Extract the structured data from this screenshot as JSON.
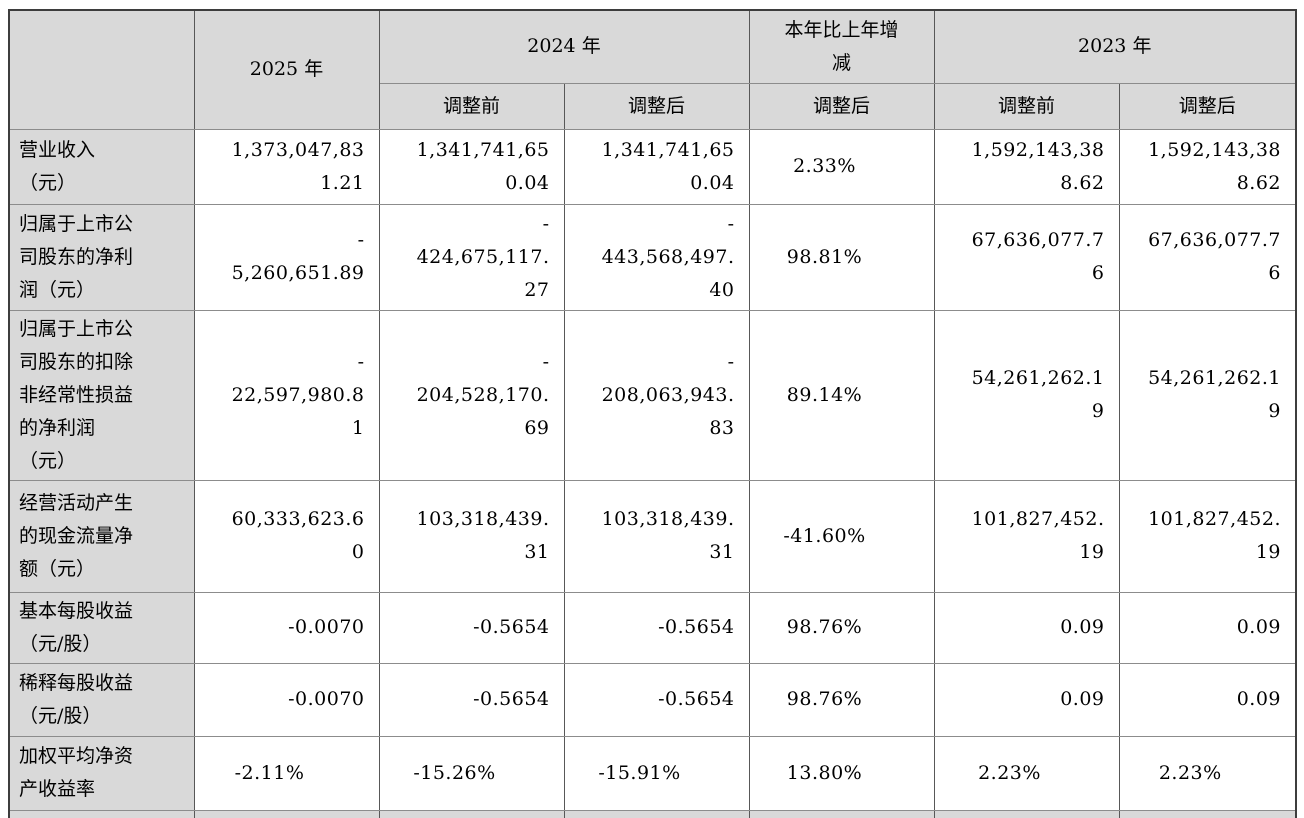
{
  "table": {
    "colors": {
      "header_bg": "#d9d9d9",
      "label_col_bg": "#d9d9d9",
      "cell_bg": "#ffffff",
      "border_outer": "#3d3d3d",
      "border_inner_vertical": "#585858",
      "border_inner_horizontal": "#8c8c8c"
    },
    "header": {
      "corner": "",
      "col_2025": "2025 年",
      "col_2024": "2024 年",
      "col_change": "本年比上年增\n减",
      "col_2023": "2023 年",
      "sub": [
        "调整前",
        "调整后",
        "调整后",
        "调整前",
        "调整后"
      ]
    },
    "rows": [
      {
        "label": "营业收入\n（元）",
        "cells": [
          "1,373,047,83\n1.21",
          "1,341,741,65\n0.04",
          "1,341,741,65\n0.04",
          "2.33%",
          "1,592,143,38\n8.62",
          "1,592,143,38\n8.62"
        ]
      },
      {
        "label": "归属于上市公\n司股东的净利\n润（元）",
        "cells": [
          "-\n5,260,651.89",
          "-\n424,675,117.\n27",
          "-\n443,568,497.\n40",
          "98.81%",
          "67,636,077.7\n6",
          "67,636,077.7\n6"
        ]
      },
      {
        "label": "归属于上市公\n司股东的扣除\n非经常性损益\n的净利润\n（元）",
        "cells": [
          "-\n22,597,980.8\n1",
          "-\n204,528,170.\n69",
          "-\n208,063,943.\n83",
          "89.14%",
          "54,261,262.1\n9",
          "54,261,262.1\n9"
        ]
      },
      {
        "label": "经营活动产生\n的现金流量净\n额（元）",
        "cells": [
          "60,333,623.6\n0",
          "103,318,439.\n31",
          "103,318,439.\n31",
          "-41.60%",
          "101,827,452.\n19",
          "101,827,452.\n19"
        ]
      },
      {
        "label": "基本每股收益\n（元/股）",
        "cells": [
          "-0.0070",
          "-0.5654",
          "-0.5654",
          "98.76%",
          "0.09",
          "0.09"
        ]
      },
      {
        "label": "稀释每股收益\n（元/股）",
        "cells": [
          "-0.0070",
          "-0.5654",
          "-0.5654",
          "98.76%",
          "0.09",
          "0.09"
        ]
      },
      {
        "label": "加权平均净资\n产收益率",
        "cells": [
          "-2.11%",
          "-15.26%",
          "-15.91%",
          "13.80%",
          "2.23%",
          "2.23%"
        ]
      }
    ]
  }
}
